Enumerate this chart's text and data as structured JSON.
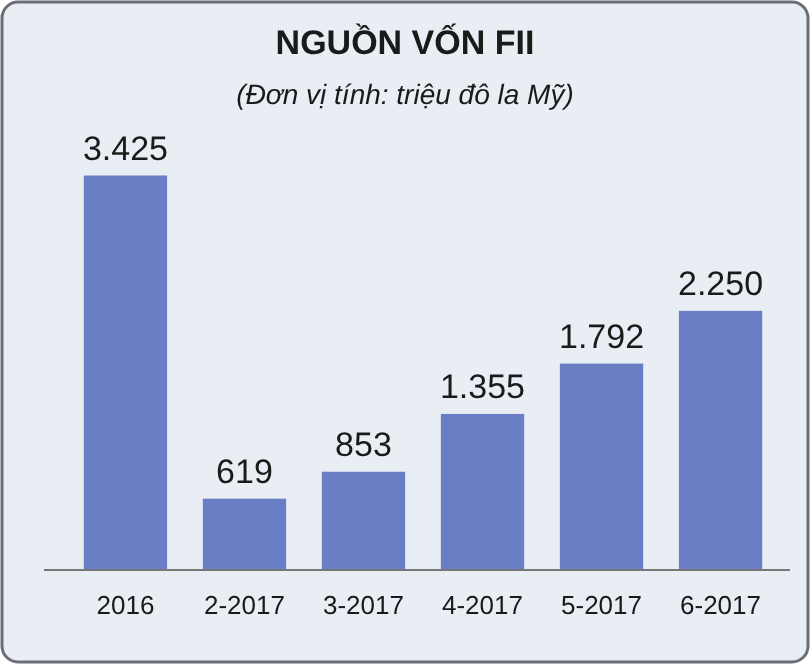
{
  "chart_data": {
    "type": "bar",
    "title": "NGUỒN VỐN FII",
    "subtitle": "(Đơn vị tính: triệu đô la Mỹ)",
    "categories": [
      "2016",
      "2-2017",
      "3-2017",
      "4-2017",
      "5-2017",
      "6-2017"
    ],
    "values": [
      3425,
      619,
      853,
      1355,
      1792,
      2250
    ],
    "value_labels": [
      "3.425",
      "619",
      "853",
      "1.355",
      "1.792",
      "2.250"
    ],
    "color": "#6a7ec6"
  }
}
